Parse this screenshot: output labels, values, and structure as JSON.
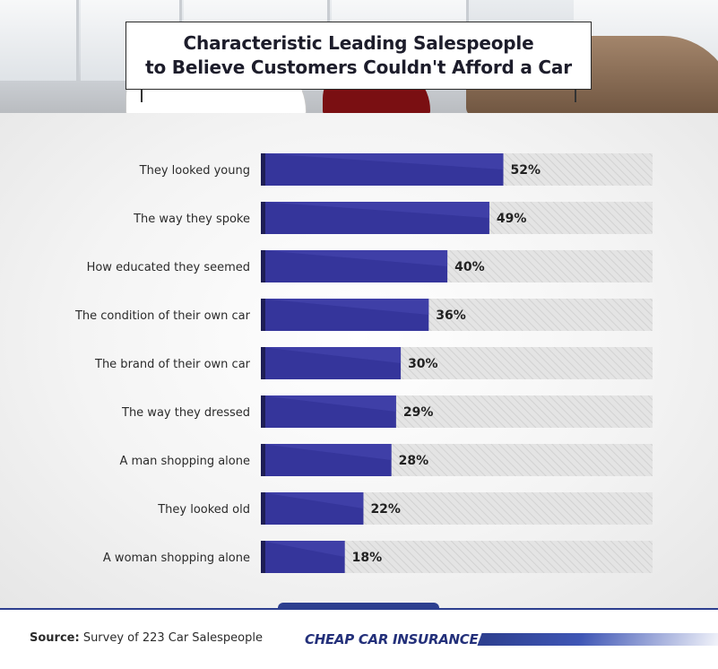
{
  "title_lines": [
    "Characteristic Leading Salespeople",
    "to Believe Customers Couldn't Afford a Car"
  ],
  "footer": {
    "source_label": "Source:",
    "source_text": " Survey of 223 Car Salespeople",
    "brand": "CHEAP CAR INSURANCE"
  },
  "colors": {
    "bar": "#35359b",
    "bar_light": "#4747b0",
    "track": "#e3e3e3",
    "brand": "#23307a"
  },
  "chart_data": {
    "type": "bar",
    "orientation": "horizontal",
    "categories": [
      "They looked young",
      "The way they spoke",
      "How educated they seemed",
      "The condition of their own car",
      "The brand of their own car",
      "The way they dressed",
      "A man shopping alone",
      "They looked old",
      "A woman shopping alone"
    ],
    "values": [
      52,
      49,
      40,
      36,
      30,
      29,
      28,
      22,
      18
    ],
    "value_labels": [
      "52%",
      "49%",
      "40%",
      "36%",
      "30%",
      "29%",
      "28%",
      "22%",
      "18%"
    ],
    "xlim": [
      0,
      100
    ],
    "grid": false,
    "legend": "none"
  }
}
